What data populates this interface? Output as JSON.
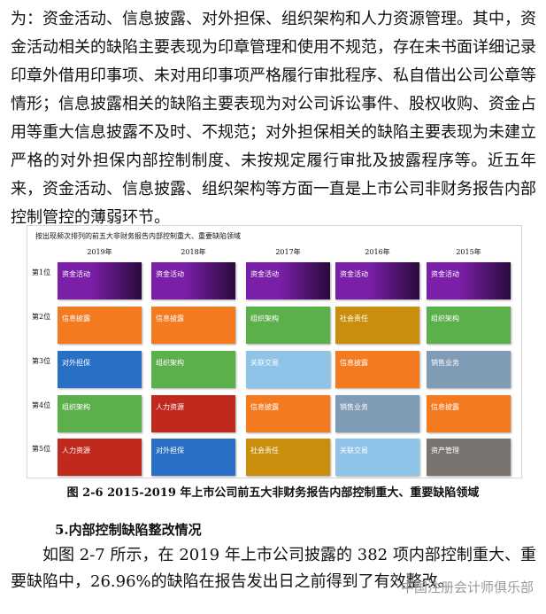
{
  "body": {
    "paragraph1": "为：资金活动、信息披露、对外担保、组织架构和人力资源管理。其中，资金活动相关的缺陷主要表现为印章管理和使用不规范，存在未书面详细记录印章外借用印事项、未对用印事项严格履行审批程序、私自借出公司公章等情形；信息披露相关的缺陷主要表现为对公司诉讼事件、股权收购、资金占用等重大信息披露不及时、不规范；对外担保相关的缺陷主要表现为未建立严格的对外担保内部控制制度、未按规定履行审批及披露程序等。近五年来，资金活动、信息披露、组织架构等方面一直是上市公司非财务报告内部控制管控的薄弱环节。",
    "figure": {
      "title": "按出现频次排列的前五大非财务报告内部控制重大、重要缺陷领域",
      "columns": [
        "2019年",
        "2018年",
        "2017年",
        "2016年",
        "2015年"
      ],
      "rows": [
        {
          "label": "第1位",
          "cells": [
            {
              "label": "资金活动",
              "color": "#7a1fa8"
            },
            {
              "label": "资金活动",
              "color": "#7a1fa8"
            },
            {
              "label": "资金活动",
              "color": "#7a1fa8"
            },
            {
              "label": "资金活动",
              "color": "#7a1fa8"
            },
            {
              "label": "资金活动",
              "color": "#7a1fa8"
            }
          ]
        },
        {
          "label": "第2位",
          "cells": [
            {
              "label": "信息披露",
              "color": "#f47a20"
            },
            {
              "label": "信息披露",
              "color": "#f47a20"
            },
            {
              "label": "组织架构",
              "color": "#5bb04b"
            },
            {
              "label": "社会责任",
              "color": "#c98f0c"
            },
            {
              "label": "组织架构",
              "color": "#5bb04b"
            }
          ]
        },
        {
          "label": "第3位",
          "cells": [
            {
              "label": "对外担保",
              "color": "#2a6fc6"
            },
            {
              "label": "组织架构",
              "color": "#5bb04b"
            },
            {
              "label": "关联交易",
              "color": "#8fc4e8"
            },
            {
              "label": "信息披露",
              "color": "#f47a20"
            },
            {
              "label": "销售业务",
              "color": "#7f9bb6"
            }
          ]
        },
        {
          "label": "第4位",
          "cells": [
            {
              "label": "组织架构",
              "color": "#5bb04b"
            },
            {
              "label": "人力资源",
              "color": "#c0291d"
            },
            {
              "label": "信息披露",
              "color": "#f47a20"
            },
            {
              "label": "销售业务",
              "color": "#7f9bb6"
            },
            {
              "label": "信息披露",
              "color": "#f47a20"
            }
          ]
        },
        {
          "label": "第5位",
          "cells": [
            {
              "label": "人力资源",
              "color": "#c0291d"
            },
            {
              "label": "对外担保",
              "color": "#2a6fc6"
            },
            {
              "label": "社会责任",
              "color": "#c98f0c"
            },
            {
              "label": "关联交易",
              "color": "#8fc4e8"
            },
            {
              "label": "资产管理",
              "color": "#7a7470"
            }
          ]
        }
      ],
      "caption": "图 2-6   2015-2019 年上市公司前五大非财务报告内部控制重大、重要缺陷领域"
    },
    "heading": "5.内部控制缺陷整改情况",
    "paragraph2": "如图 2-7 所示，在 2019 年上市公司披露的 382 项内部控制重大、重要缺陷中，26.96%的缺陷在报告发出日之前得到了有效整改。",
    "watermark": "中国注册会计师俱乐部"
  }
}
